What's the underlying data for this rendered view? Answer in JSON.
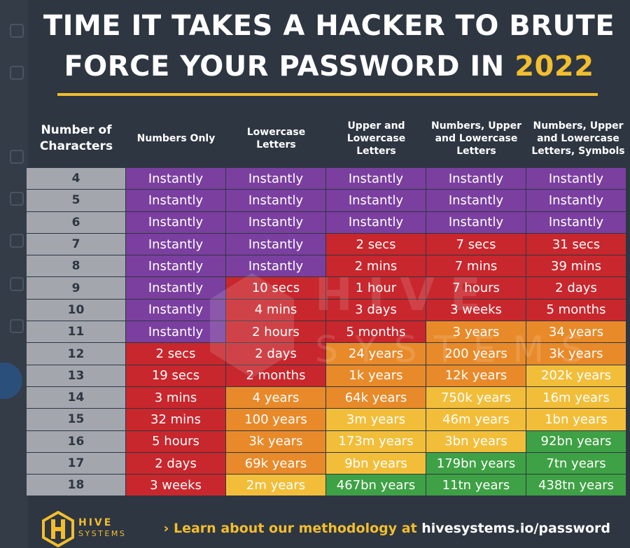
{
  "title": {
    "line1": "TIME IT TAKES A HACKER TO BRUTE",
    "line2_prefix": "FORCE YOUR PASSWORD IN ",
    "year": "2022"
  },
  "colors": {
    "background": "#2e3642",
    "accent": "#f2be2e",
    "number_column": "#a3a7ad",
    "purple": "#7b3fa0",
    "red": "#c8272d",
    "orange": "#e88a2a",
    "yellow": "#f2be3a",
    "green": "#3fa145"
  },
  "chart_data": {
    "type": "table",
    "title": "TIME IT TAKES A HACKER TO BRUTE FORCE YOUR PASSWORD IN 2022",
    "columns": [
      "Number of Characters",
      "Numbers Only",
      "Lowercase Letters",
      "Upper and Lowercase Letters",
      "Numbers, Upper and Lowercase Letters",
      "Numbers, Upper and Lowercase Letters, Symbols"
    ],
    "rows": [
      {
        "chars": "4",
        "values": [
          "Instantly",
          "Instantly",
          "Instantly",
          "Instantly",
          "Instantly"
        ],
        "tiers": [
          "purple",
          "purple",
          "purple",
          "purple",
          "purple"
        ]
      },
      {
        "chars": "5",
        "values": [
          "Instantly",
          "Instantly",
          "Instantly",
          "Instantly",
          "Instantly"
        ],
        "tiers": [
          "purple",
          "purple",
          "purple",
          "purple",
          "purple"
        ]
      },
      {
        "chars": "6",
        "values": [
          "Instantly",
          "Instantly",
          "Instantly",
          "Instantly",
          "Instantly"
        ],
        "tiers": [
          "purple",
          "purple",
          "purple",
          "purple",
          "purple"
        ]
      },
      {
        "chars": "7",
        "values": [
          "Instantly",
          "Instantly",
          "2 secs",
          "7 secs",
          "31 secs"
        ],
        "tiers": [
          "purple",
          "purple",
          "red",
          "red",
          "red"
        ]
      },
      {
        "chars": "8",
        "values": [
          "Instantly",
          "Instantly",
          "2 mins",
          "7 mins",
          "39 mins"
        ],
        "tiers": [
          "purple",
          "purple",
          "red",
          "red",
          "red"
        ]
      },
      {
        "chars": "9",
        "values": [
          "Instantly",
          "10 secs",
          "1 hour",
          "7 hours",
          "2 days"
        ],
        "tiers": [
          "purple",
          "red",
          "red",
          "red",
          "red"
        ]
      },
      {
        "chars": "10",
        "values": [
          "Instantly",
          "4 mins",
          "3 days",
          "3 weeks",
          "5 months"
        ],
        "tiers": [
          "purple",
          "red",
          "red",
          "red",
          "red"
        ]
      },
      {
        "chars": "11",
        "values": [
          "Instantly",
          "2 hours",
          "5 months",
          "3 years",
          "34 years"
        ],
        "tiers": [
          "purple",
          "red",
          "red",
          "orange",
          "orange"
        ]
      },
      {
        "chars": "12",
        "values": [
          "2 secs",
          "2 days",
          "24 years",
          "200 years",
          "3k years"
        ],
        "tiers": [
          "red",
          "red",
          "orange",
          "orange",
          "orange"
        ]
      },
      {
        "chars": "13",
        "values": [
          "19 secs",
          "2 months",
          "1k years",
          "12k years",
          "202k years"
        ],
        "tiers": [
          "red",
          "red",
          "orange",
          "orange",
          "yellow"
        ]
      },
      {
        "chars": "14",
        "values": [
          "3 mins",
          "4 years",
          "64k years",
          "750k years",
          "16m years"
        ],
        "tiers": [
          "red",
          "orange",
          "orange",
          "yellow",
          "yellow"
        ]
      },
      {
        "chars": "15",
        "values": [
          "32 mins",
          "100 years",
          "3m years",
          "46m years",
          "1bn years"
        ],
        "tiers": [
          "red",
          "orange",
          "yellow",
          "yellow",
          "yellow"
        ]
      },
      {
        "chars": "16",
        "values": [
          "5 hours",
          "3k years",
          "173m years",
          "3bn years",
          "92bn years"
        ],
        "tiers": [
          "red",
          "orange",
          "yellow",
          "yellow",
          "green"
        ]
      },
      {
        "chars": "17",
        "values": [
          "2 days",
          "69k years",
          "9bn years",
          "179bn years",
          "7tn years"
        ],
        "tiers": [
          "red",
          "orange",
          "yellow",
          "green",
          "green"
        ]
      },
      {
        "chars": "18",
        "values": [
          "3 weeks",
          "2m years",
          "467bn years",
          "11tn years",
          "438tn years"
        ],
        "tiers": [
          "red",
          "yellow",
          "green",
          "green",
          "green"
        ]
      }
    ]
  },
  "watermark": {
    "line1": "HIVE",
    "line2": "SYSTEMS"
  },
  "logo": {
    "line1": "HIVE",
    "line2": "SYSTEMS"
  },
  "footer": {
    "prefix": "› Learn about our methodology at ",
    "url": "hivesystems.io/password"
  }
}
